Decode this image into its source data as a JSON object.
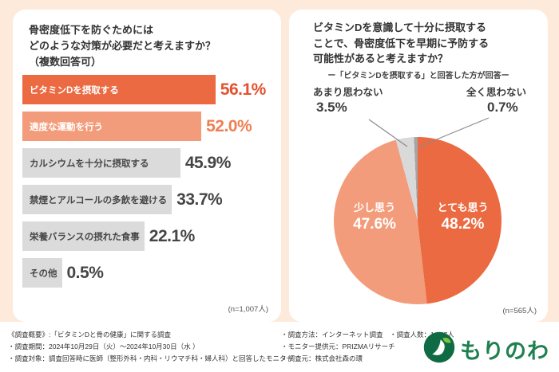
{
  "page": {
    "background_color": "#fdeadb",
    "accent_orange": "#eb6a41",
    "accent_salmon": "#f39c7b",
    "gray_light": "#dbdbdb",
    "gray_dark": "#a5a5a5",
    "logo_green": "#1f8050"
  },
  "left_panel": {
    "title_lines": [
      "骨密度低下を防ぐためには",
      "どのような対策が必要だと考えますか？",
      "（複数回答可）"
    ],
    "n_label": "(n=1,007人)"
  },
  "right_panel": {
    "title_lines": [
      "ビタミンDを意識して十分に摂取する",
      "ことで、骨密度低下を早期に予防する",
      "可能性があると考えますか？"
    ],
    "subtitle": "ー「ビタミンDを摂取する」と回答した方が回答ー",
    "n_label": "(n=565人)"
  },
  "chart_data": [
    {
      "type": "bar",
      "orientation": "horizontal",
      "title": "骨密度低下を防ぐためにはどのような対策が必要だと考えますか？（複数回答可）",
      "categories": [
        "ビタミンDを摂取する",
        "適度な運動を行う",
        "カルシウムを十分に摂取する",
        "禁煙とアルコールの多飲を避ける",
        "栄養バランスの摂れた食事",
        "その他"
      ],
      "values": [
        56.1,
        52.0,
        45.9,
        33.7,
        22.1,
        0.5
      ],
      "value_labels": [
        "56.1%",
        "52.0%",
        "45.9%",
        "33.7%",
        "22.1%",
        "0.5%"
      ],
      "bar_colors": [
        "#eb6a41",
        "#f39c7b",
        "#dbdbdb",
        "#dbdbdb",
        "#dbdbdb",
        "#dbdbdb"
      ],
      "category_text_colors": [
        "#ffffff",
        "#ffffff",
        "#474747",
        "#474747",
        "#474747",
        "#474747"
      ],
      "value_text_colors": [
        "#e4512f",
        "#ef7f53",
        "#454545",
        "#454545",
        "#454545",
        "#454545"
      ],
      "xlim": [
        0,
        60
      ],
      "sample": "(n=1,007人)"
    },
    {
      "type": "pie",
      "title": "ビタミンDを意識して十分に摂取することで、骨密度低下を早期に予防する可能性があると考えますか？",
      "subtitle": "ー「ビタミンDを摂取する」と回答した方が回答ー",
      "start_angle": "top",
      "direction": "clockwise",
      "slices": [
        {
          "label": "とても思う",
          "value": 48.2,
          "display": "48.2%",
          "color": "#eb6a41",
          "label_placement": "inside-right"
        },
        {
          "label": "少し思う",
          "value": 47.6,
          "display": "47.6%",
          "color": "#f39c7b",
          "label_placement": "inside-left"
        },
        {
          "label": "あまり思わない",
          "value": 3.5,
          "display": "3.5%",
          "color": "#d9d9d9",
          "label_placement": "outside-left"
        },
        {
          "label": "全く思わない",
          "value": 0.7,
          "display": "0.7%",
          "color": "#a5a5a5",
          "label_placement": "outside-right"
        }
      ],
      "sample": "(n=565人)"
    }
  ],
  "footer": {
    "left_lines": [
      "《調査概要》:「ビタミンDと骨の健康」に関する調査",
      "・調査期間：2024年10月29日（火）～2024年10月30日（水 ）",
      "・調査対象：調査回答時に医師（整形外科・内科・リウマチ科・婦人科）と回答したモニター"
    ],
    "right_lines": [
      "・調査方法：インターネット調査　・調査人数：1,007人",
      "・モニター提供元：PRIZMAリサーチ",
      "・調査元：株式会社森の環"
    ],
    "logo_text": "もりのわ",
    "logo_icon": "leaf-circle-icon"
  }
}
